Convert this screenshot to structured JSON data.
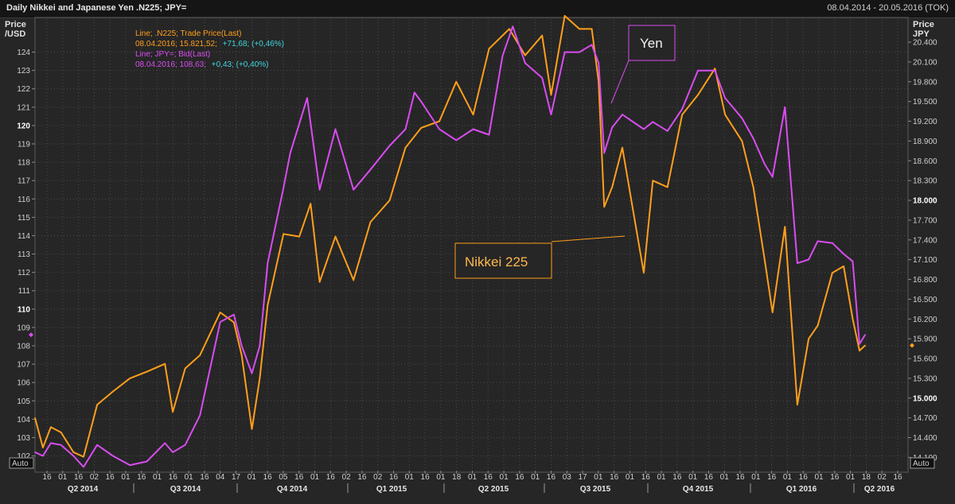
{
  "header": {
    "title": "Daily Nikkei and Japanese Yen .N225; JPY=",
    "range": "08.04.2014 - 20.05.2016 (TOK)"
  },
  "axes": {
    "left_title": [
      "Price",
      "/USD"
    ],
    "right_title": [
      "Price",
      "JPY"
    ],
    "left_auto": "Auto",
    "right_auto": "Auto"
  },
  "legend": {
    "line1": "Line; .N225; Trade Price(Last)",
    "line2_a": "08.04.2016; 15.821,52;",
    "line2_b": "+71,68; (+0,46%)",
    "line3": "Line; JPY=; Bid(Last)",
    "line4_a": "08.04.2016; 108,63;",
    "line4_b": "+0,43; (+0,40%)"
  },
  "annotations": {
    "yen": "Yen",
    "nikkei": "Nikkei 225"
  },
  "colors": {
    "nikkei": "#ff9f1c",
    "yen": "#d84df0",
    "cyan": "#3fd7e0",
    "grid": "#4a4a4a",
    "background": "#262626"
  },
  "chart_data": {
    "type": "line",
    "title": "Daily Nikkei and Japanese Yen .N225; JPY=",
    "x_range": [
      "2014-04-08",
      "2016-05-20"
    ],
    "left_axis": {
      "title": "Price /USD",
      "ticks": [
        102,
        103,
        104,
        105,
        106,
        107,
        108,
        109,
        110,
        111,
        112,
        113,
        114,
        115,
        116,
        117,
        118,
        119,
        120,
        121,
        122,
        123,
        124
      ],
      "bold_ticks": [
        110,
        120
      ],
      "ylim": [
        101.2,
        125.8
      ]
    },
    "right_axis": {
      "title": "Price JPY",
      "ticks": [
        "14.100",
        "14.400",
        "14.700",
        "15.000",
        "15.300",
        "15.600",
        "15.900",
        "16.200",
        "16.500",
        "16.800",
        "17.100",
        "17.400",
        "17.700",
        "18.000",
        "18.300",
        "18.600",
        "18.900",
        "19.200",
        "19.500",
        "19.800",
        "20.100",
        "20.400"
      ],
      "tick_values": [
        14100,
        14400,
        14700,
        15000,
        15300,
        15600,
        15900,
        16200,
        16500,
        16800,
        17100,
        17400,
        17700,
        18000,
        18300,
        18600,
        18900,
        19200,
        19500,
        19800,
        20100,
        20400
      ],
      "bold_ticks": [
        15000,
        18000
      ],
      "ylim": [
        13900,
        20750
      ]
    },
    "x_day_ticks": [
      "16",
      "01",
      "16",
      "02",
      "16",
      "01",
      "16",
      "01",
      "16",
      "01",
      "16",
      "04",
      "17",
      "01",
      "16",
      "05",
      "16",
      "01",
      "16",
      "02",
      "16",
      "02",
      "16",
      "01",
      "16",
      "01",
      "18",
      "01",
      "16",
      "01",
      "16",
      "01",
      "16",
      "03",
      "17",
      "01",
      "16",
      "01",
      "16",
      "01",
      "16",
      "01",
      "16",
      "01",
      "16",
      "01",
      "16",
      "01",
      "16",
      "01",
      "16",
      "01",
      "18",
      "02",
      "16"
    ],
    "x_quarters": [
      "Q2 2014",
      "Q3 2014",
      "Q4 2014",
      "Q1 2015",
      "Q2 2015",
      "Q3 2015",
      "Q4 2015",
      "Q1 2016",
      "Q2 2016"
    ],
    "series": [
      {
        "name": ".N225",
        "axis": "right",
        "color": "#ff9f1c",
        "points": [
          [
            "2014-04-08",
            14700
          ],
          [
            "2014-04-15",
            14250
          ],
          [
            "2014-04-22",
            14560
          ],
          [
            "2014-05-01",
            14480
          ],
          [
            "2014-05-12",
            14180
          ],
          [
            "2014-05-21",
            14110
          ],
          [
            "2014-06-02",
            14900
          ],
          [
            "2014-06-16",
            15100
          ],
          [
            "2014-07-01",
            15300
          ],
          [
            "2014-07-16",
            15400
          ],
          [
            "2014-08-01",
            15520
          ],
          [
            "2014-08-08",
            14790
          ],
          [
            "2014-08-19",
            15450
          ],
          [
            "2014-09-01",
            15650
          ],
          [
            "2014-09-19",
            16300
          ],
          [
            "2014-10-01",
            16150
          ],
          [
            "2014-10-08",
            15650
          ],
          [
            "2014-10-17",
            14530
          ],
          [
            "2014-10-24",
            15300
          ],
          [
            "2014-10-31",
            16410
          ],
          [
            "2014-11-14",
            17490
          ],
          [
            "2014-11-28",
            17450
          ],
          [
            "2014-12-08",
            17950
          ],
          [
            "2014-12-16",
            16760
          ],
          [
            "2014-12-30",
            17450
          ],
          [
            "2015-01-15",
            16790
          ],
          [
            "2015-01-30",
            17670
          ],
          [
            "2015-02-16",
            18000
          ],
          [
            "2015-03-02",
            18800
          ],
          [
            "2015-03-16",
            19100
          ],
          [
            "2015-04-01",
            19200
          ],
          [
            "2015-04-16",
            19800
          ],
          [
            "2015-05-01",
            19300
          ],
          [
            "2015-05-15",
            20300
          ],
          [
            "2015-06-02",
            20600
          ],
          [
            "2015-06-16",
            20200
          ],
          [
            "2015-07-01",
            20500
          ],
          [
            "2015-07-09",
            19600
          ],
          [
            "2015-07-21",
            20800
          ],
          [
            "2015-08-03",
            20600
          ],
          [
            "2015-08-14",
            20600
          ],
          [
            "2015-08-20",
            19800
          ],
          [
            "2015-08-25",
            17900
          ],
          [
            "2015-09-01",
            18200
          ],
          [
            "2015-09-10",
            18800
          ],
          [
            "2015-09-29",
            16900
          ],
          [
            "2015-10-07",
            18300
          ],
          [
            "2015-10-20",
            18200
          ],
          [
            "2015-11-02",
            19300
          ],
          [
            "2015-11-16",
            19600
          ],
          [
            "2015-12-01",
            20000
          ],
          [
            "2015-12-10",
            19300
          ],
          [
            "2015-12-25",
            18900
          ],
          [
            "2016-01-04",
            18200
          ],
          [
            "2016-01-14",
            17100
          ],
          [
            "2016-01-21",
            16300
          ],
          [
            "2016-02-01",
            17600
          ],
          [
            "2016-02-12",
            14900
          ],
          [
            "2016-02-22",
            15900
          ],
          [
            "2016-03-01",
            16100
          ],
          [
            "2016-03-14",
            16900
          ],
          [
            "2016-03-24",
            17000
          ],
          [
            "2016-04-01",
            16200
          ],
          [
            "2016-04-07",
            15720
          ],
          [
            "2016-04-12",
            15800
          ]
        ]
      },
      {
        "name": "JPY=",
        "axis": "left",
        "color": "#d84df0",
        "points": [
          [
            "2014-04-08",
            102.2
          ],
          [
            "2014-04-15",
            102.0
          ],
          [
            "2014-04-22",
            102.7
          ],
          [
            "2014-05-01",
            102.6
          ],
          [
            "2014-05-12",
            102.0
          ],
          [
            "2014-05-21",
            101.4
          ],
          [
            "2014-06-02",
            102.6
          ],
          [
            "2014-06-16",
            102.0
          ],
          [
            "2014-07-01",
            101.5
          ],
          [
            "2014-07-16",
            101.7
          ],
          [
            "2014-08-01",
            102.7
          ],
          [
            "2014-08-08",
            102.2
          ],
          [
            "2014-08-19",
            102.6
          ],
          [
            "2014-09-01",
            104.2
          ],
          [
            "2014-09-19",
            109.3
          ],
          [
            "2014-10-01",
            109.7
          ],
          [
            "2014-10-08",
            108.0
          ],
          [
            "2014-10-17",
            106.5
          ],
          [
            "2014-10-24",
            108.0
          ],
          [
            "2014-10-31",
            112.5
          ],
          [
            "2014-11-14",
            116.6
          ],
          [
            "2014-11-20",
            118.5
          ],
          [
            "2014-12-05",
            121.5
          ],
          [
            "2014-12-16",
            116.5
          ],
          [
            "2014-12-30",
            119.8
          ],
          [
            "2015-01-15",
            116.5
          ],
          [
            "2015-01-30",
            117.6
          ],
          [
            "2015-02-16",
            118.9
          ],
          [
            "2015-03-02",
            119.8
          ],
          [
            "2015-03-10",
            121.8
          ],
          [
            "2015-03-16",
            121.3
          ],
          [
            "2015-04-01",
            119.8
          ],
          [
            "2015-04-16",
            119.2
          ],
          [
            "2015-05-01",
            119.8
          ],
          [
            "2015-05-15",
            119.5
          ],
          [
            "2015-05-27",
            123.8
          ],
          [
            "2015-06-05",
            125.4
          ],
          [
            "2015-06-16",
            123.4
          ],
          [
            "2015-07-01",
            122.6
          ],
          [
            "2015-07-09",
            120.6
          ],
          [
            "2015-07-21",
            124.0
          ],
          [
            "2015-08-03",
            124.0
          ],
          [
            "2015-08-14",
            124.4
          ],
          [
            "2015-08-20",
            123.4
          ],
          [
            "2015-08-25",
            118.5
          ],
          [
            "2015-09-01",
            119.9
          ],
          [
            "2015-09-10",
            120.6
          ],
          [
            "2015-09-29",
            119.8
          ],
          [
            "2015-10-07",
            120.2
          ],
          [
            "2015-10-20",
            119.7
          ],
          [
            "2015-11-02",
            120.9
          ],
          [
            "2015-11-16",
            123.0
          ],
          [
            "2015-12-01",
            123.0
          ],
          [
            "2015-12-10",
            121.5
          ],
          [
            "2015-12-25",
            120.4
          ],
          [
            "2016-01-04",
            119.3
          ],
          [
            "2016-01-14",
            117.9
          ],
          [
            "2016-01-21",
            117.2
          ],
          [
            "2016-02-01",
            121.0
          ],
          [
            "2016-02-12",
            112.5
          ],
          [
            "2016-02-22",
            112.7
          ],
          [
            "2016-03-01",
            113.7
          ],
          [
            "2016-03-14",
            113.6
          ],
          [
            "2016-03-24",
            113.0
          ],
          [
            "2016-04-01",
            112.6
          ],
          [
            "2016-04-07",
            108.1
          ],
          [
            "2016-04-12",
            108.6
          ]
        ]
      }
    ],
    "grid": true
  }
}
